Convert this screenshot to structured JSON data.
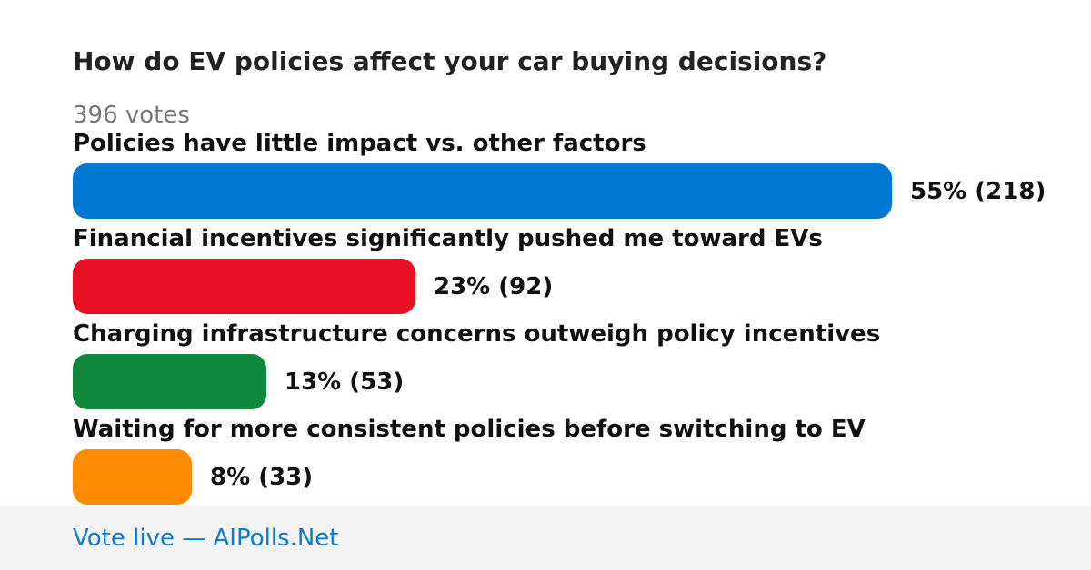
{
  "poll": {
    "question": "How do EV policies affect your car buying decisions?",
    "votes_label": "396 votes"
  },
  "chart_data": {
    "type": "bar",
    "orientation": "horizontal",
    "title": "How do EV policies affect your car buying decisions?",
    "total_votes": 396,
    "categories": [
      "Policies have little impact vs. other factors",
      "Financial incentives significantly pushed me toward EVs",
      "Charging infrastructure concerns outweigh policy incentives",
      "Waiting for more consistent policies before switching to EV"
    ],
    "values": [
      218,
      92,
      53,
      33
    ],
    "percents": [
      55,
      23,
      13,
      8
    ],
    "value_labels": [
      "55% (218)",
      "23% (92)",
      "13% (53)",
      "8% (33)"
    ],
    "colors": [
      "#0078d4",
      "#e81123",
      "#10893e",
      "#ff8c00"
    ]
  },
  "footer": {
    "link_text": "Vote live — AIPolls.Net"
  }
}
